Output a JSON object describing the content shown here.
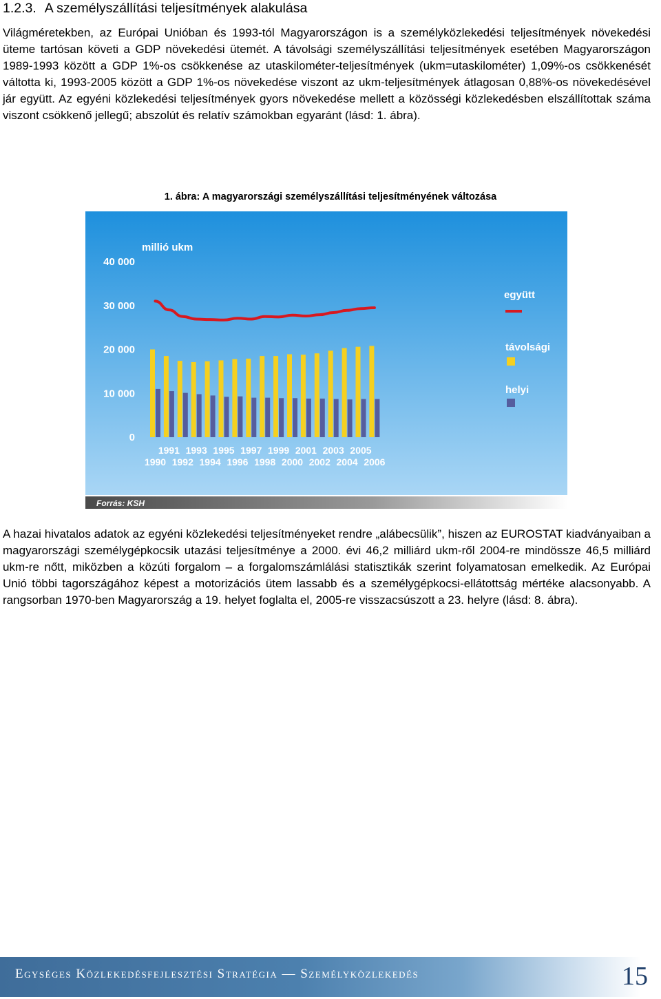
{
  "section": {
    "number": "1.2.3.",
    "title": "A személyszállítási teljesítmények alakulása"
  },
  "paragraph1": "Világméretekben, az Európai Unióban és 1993-tól Magyarországon is a személyközlekedési teljesítmények növekedési üteme tartósan követi a GDP növekedési ütemét. A távolsági személyszállítási teljesítmények esetében Magyarországon 1989-1993 között a GDP 1%-os csökkenése az utaskilométer-teljesítmények (ukm=utaskilométer) 1,09%-os csökkenését váltotta ki, 1993-2005 között a GDP 1%-os növekedése viszont az ukm-teljesítmények átlagosan 0,88%-os növekedésével jár együtt. Az egyéni közlekedési teljesítmények gyors növekedése mellett a közösségi közlekedésben elszállítottak száma viszont csökkenő jellegű; abszolút és relatív számokban egyaránt (lásd: 1. ábra).",
  "figure_caption": "1. ábra: A magyarországi személyszállítási teljesítményének változása",
  "chart_data": {
    "type": "bar",
    "ylabel": "millió ukm",
    "ylim": [
      0,
      40000
    ],
    "yticks": [
      "0",
      "10 000",
      "20 000",
      "30 000",
      "40 000"
    ],
    "categories": [
      "1990",
      "1991",
      "1992",
      "1993",
      "1994",
      "1995",
      "1996",
      "1997",
      "1998",
      "1999",
      "2000",
      "2001",
      "2002",
      "2003",
      "2004",
      "2005",
      "2006"
    ],
    "xtick_labels_top": [
      "1991",
      "1993",
      "1995",
      "1997",
      "1999",
      "2001",
      "2003",
      "2005"
    ],
    "xtick_labels_bottom": [
      "1990",
      "1992",
      "1994",
      "1996",
      "1998",
      "2000",
      "2002",
      "2004",
      "2006"
    ],
    "series": [
      {
        "name": "távolsági",
        "color": "#f5d020",
        "values": [
          20000,
          18500,
          17400,
          17100,
          17300,
          17500,
          17800,
          17900,
          18500,
          18500,
          18900,
          18800,
          19100,
          19700,
          20300,
          20600,
          20800
        ]
      },
      {
        "name": "helyi",
        "color": "#555d9e",
        "values": [
          11000,
          10500,
          10100,
          9800,
          9500,
          9200,
          9300,
          9000,
          9000,
          8900,
          8900,
          8800,
          8800,
          8700,
          8600,
          8700,
          8700
        ]
      },
      {
        "name": "együtt",
        "color": "#d71920",
        "values": [
          31000,
          29000,
          27500,
          26900,
          26800,
          26700,
          27100,
          26900,
          27500,
          27400,
          27800,
          27600,
          27900,
          28400,
          28900,
          29300,
          29500
        ]
      }
    ],
    "legend": [
      "együtt",
      "távolsági",
      "helyi"
    ],
    "legend_position": "right",
    "source": "Forrás: KSH",
    "colors": {
      "background_top": "#1e90dd",
      "background_bottom": "#a9d6f5",
      "axis_text": "#ffffff"
    }
  },
  "paragraph2": "A hazai hivatalos adatok az egyéni közlekedési teljesítményeket rendre „alábecsülik”, hiszen az EUROSTAT kiadványaiban a magyarországi személygépkocsik utazási teljesítménye a 2000. évi 46,2 milliárd ukm-ről 2004-re mindössze 46,5 milliárd ukm-re nőtt, miközben a közúti forgalom – a forgalomszámlálási statisztikák szerint folyamatosan emelkedik. Az Európai Unió többi tagországához képest a motorizációs ütem lassabb és a személygépkocsi-ellátottság mértéke alacsonyabb. A rangsorban 1970-ben Magyarország a 19. helyet foglalta el, 2005-re visszacsúszott a 23. helyre (lásd: 8. ábra).",
  "footer": {
    "title": "Egységes Közlekedésfejlesztési Stratégia — Személyközlekedés",
    "page_number": "15"
  }
}
